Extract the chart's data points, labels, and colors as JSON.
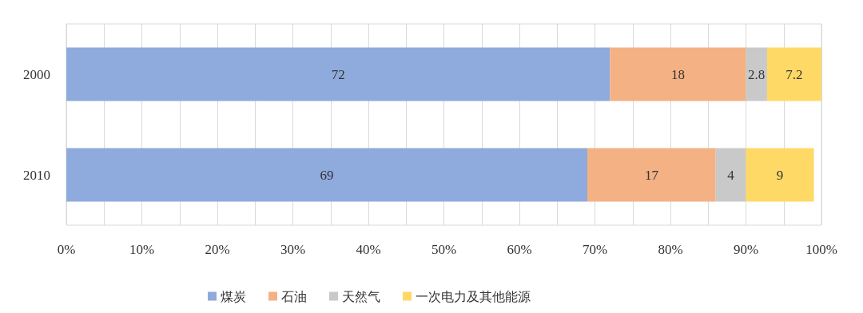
{
  "chart_data": {
    "type": "bar",
    "orientation": "horizontal",
    "stacked": true,
    "categories": [
      "2000",
      "2010"
    ],
    "series": [
      {
        "name": "煤炭",
        "color": "#8faadc",
        "values": [
          72,
          69
        ]
      },
      {
        "name": "石油",
        "color": "#f4b183",
        "values": [
          18,
          17
        ]
      },
      {
        "name": "天然气",
        "color": "#c9c9c9",
        "values": [
          2.8,
          4
        ]
      },
      {
        "name": "一次电力及其他能源",
        "color": "#ffd966",
        "values": [
          7.2,
          9
        ]
      }
    ],
    "xlim": [
      0,
      100
    ],
    "xticks": [
      {
        "value": 0,
        "label": "0%"
      },
      {
        "value": 5,
        "label": null
      },
      {
        "value": 10,
        "label": "10%"
      },
      {
        "value": 15,
        "label": null
      },
      {
        "value": 20,
        "label": "20%"
      },
      {
        "value": 25,
        "label": null
      },
      {
        "value": 30,
        "label": "30%"
      },
      {
        "value": 35,
        "label": null
      },
      {
        "value": 40,
        "label": "40%"
      },
      {
        "value": 45,
        "label": null
      },
      {
        "value": 50,
        "label": "50%"
      },
      {
        "value": 55,
        "label": null
      },
      {
        "value": 60,
        "label": "60%"
      },
      {
        "value": 65,
        "label": null
      },
      {
        "value": 70,
        "label": "70%"
      },
      {
        "value": 75,
        "label": null
      },
      {
        "value": 80,
        "label": "80%"
      },
      {
        "value": 85,
        "label": null
      },
      {
        "value": 90,
        "label": "90%"
      },
      {
        "value": 95,
        "label": null
      },
      {
        "value": 100,
        "label": "100%"
      }
    ],
    "grid": true,
    "data_labels": true,
    "legend": "bottom"
  }
}
